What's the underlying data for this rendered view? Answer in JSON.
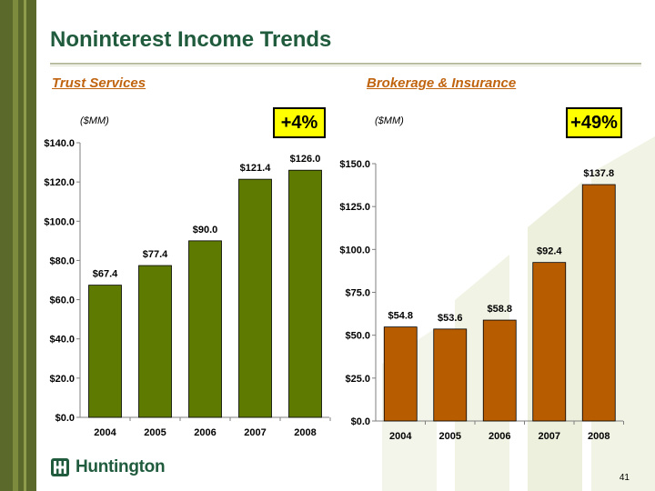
{
  "title": "Noninterest Income Trends",
  "colors": {
    "brand_green": "#1f5b3c",
    "trust_bar": "#5f7a00",
    "brokerage_bar": "#b85c00",
    "section_title": "#c0640f",
    "badge": "#ffff00"
  },
  "chart_data": [
    {
      "type": "bar",
      "title": "Trust Services",
      "unit_label": "($MM)",
      "badge": "+4%",
      "categories": [
        "2004",
        "2005",
        "2006",
        "2007",
        "2008"
      ],
      "values": [
        67.4,
        77.4,
        90.0,
        121.4,
        126.0
      ],
      "value_labels": [
        "$67.4",
        "$77.4",
        "$90.0",
        "$121.4",
        "$126.0"
      ],
      "ylim": [
        0,
        140
      ],
      "yticks": [
        0,
        20,
        40,
        60,
        80,
        100,
        120,
        140
      ],
      "ytick_labels": [
        "$0.0",
        "$20.0",
        "$40.0",
        "$60.0",
        "$80.0",
        "$100.0",
        "$120.0",
        "$140.0"
      ],
      "color": "#5f7a00",
      "xlabel": "",
      "ylabel": ""
    },
    {
      "type": "bar",
      "title": "Brokerage & Insurance",
      "unit_label": "($MM)",
      "badge": "+49%",
      "categories": [
        "2004",
        "2005",
        "2006",
        "2007",
        "2008"
      ],
      "values": [
        54.8,
        53.6,
        58.8,
        92.4,
        137.8
      ],
      "value_labels": [
        "$54.8",
        "$53.6",
        "$58.8",
        "$92.4",
        "$137.8"
      ],
      "ylim": [
        0,
        150
      ],
      "yticks": [
        0,
        25,
        50,
        75,
        100,
        125,
        150
      ],
      "ytick_labels": [
        "$0.0",
        "$25.0",
        "$50.0",
        "$75.0",
        "$100.0",
        "$125.0",
        "$150.0"
      ],
      "color": "#b85c00",
      "xlabel": "",
      "ylabel": ""
    }
  ],
  "footer": {
    "logo_text": "Huntington",
    "logo_icon": "huntington-logo-icon",
    "page_number": "41"
  }
}
